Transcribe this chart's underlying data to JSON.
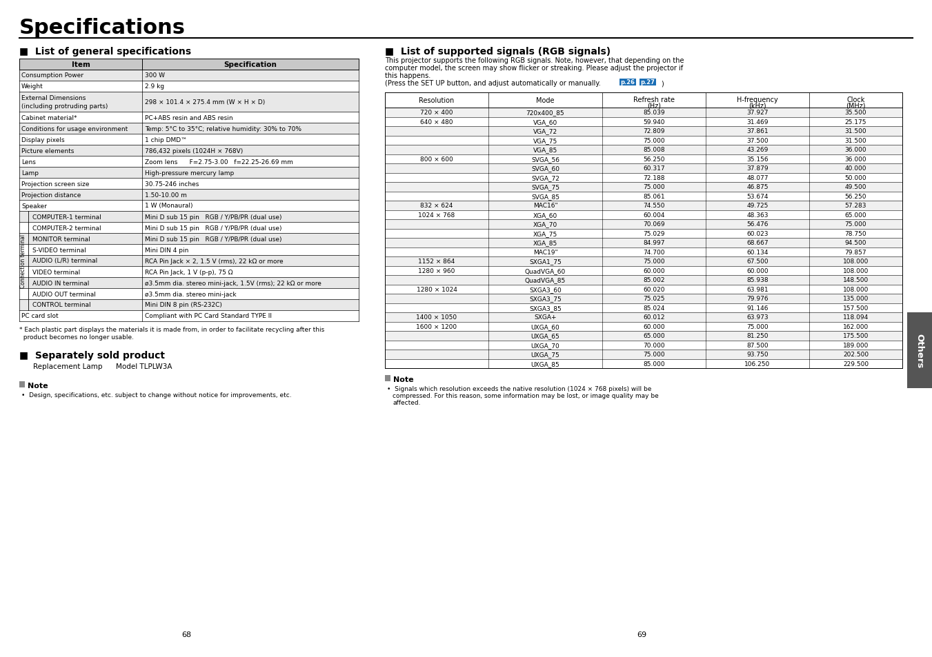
{
  "title": "Specifications",
  "gen_spec_rows": [
    [
      "Consumption Power",
      "300 W"
    ],
    [
      "Weight",
      "2.9 kg"
    ],
    [
      "External Dimensions\n(including protruding parts)",
      "298 × 101.4 × 275.4 mm (W × H × D)"
    ],
    [
      "Cabinet material*",
      "PC+ABS resin and ABS resin"
    ],
    [
      "Conditions for usage environment",
      "Temp: 5°C to 35°C; relative humidity: 30% to 70%"
    ],
    [
      "Display pixels",
      "1 chip DMD™"
    ],
    [
      "Picture elements",
      "786,432 pixels (1024H × 768V)"
    ],
    [
      "Lens",
      "Zoom lens      F=2.75-3.00   f=22.25-26.69 mm"
    ],
    [
      "Lamp",
      "High-pressure mercury lamp"
    ],
    [
      "Projection screen size",
      "30.75-246 inches"
    ],
    [
      "Projection distance",
      "1.50-10.00 m"
    ],
    [
      "Speaker",
      "1 W (Monaural)"
    ],
    [
      "COMPUTER-1 terminal",
      "Mini D sub 15 pin   RGB / Y/PB/PR (dual use)"
    ],
    [
      "COMPUTER-2 terminal",
      "Mini D sub 15 pin   RGB / Y/PB/PR (dual use)"
    ],
    [
      "MONITOR terminal",
      "Mini D sub 15 pin   RGB / Y/PB/PR (dual use)"
    ],
    [
      "S-VIDEO terminal",
      "Mini DIN 4 pin"
    ],
    [
      "AUDIO (L/R) terminal",
      "RCA Pin Jack × 2, 1.5 V (rms), 22 kΩ or more"
    ],
    [
      "VIDEO terminal",
      "RCA Pin Jack, 1 V (p-p), 75 Ω"
    ],
    [
      "AUDIO IN terminal",
      "ø3.5mm dia. stereo mini-jack, 1.5V (rms); 22 kΩ or more"
    ],
    [
      "AUDIO OUT terminal",
      "ø3.5mm dia. stereo mini-jack"
    ],
    [
      "CONTROL terminal",
      "Mini DIN 8 pin (RS-232C)"
    ],
    [
      "PC card slot",
      "Compliant with PC Card Standard TYPE II"
    ]
  ],
  "connection_terminal_rows": [
    12,
    13,
    14,
    15,
    16,
    17,
    18,
    19,
    20
  ],
  "footnote_line1": "* Each plastic part displays the materials it is made from, in order to facilitate recycling after this",
  "footnote_line2": "  product becomes no longer usable.",
  "sold_product_text": "Replacement Lamp      Model TLPLW3A",
  "left_note_text": "Design, specifications, etc. subject to change without notice for improvements, etc.",
  "rgb_intro_lines": [
    "This projector supports the following RGB signals. Note, however, that depending on the",
    "computer model, the screen may show flicker or streaking. Please adjust the projector if",
    "this happens.",
    "(Press the SET UP button, and adjust automatically or manually. "
  ],
  "rgb_headers": [
    "Resolution",
    "Mode",
    "Refresh rate\n(Hz)",
    "H-frequency\n(kHz)",
    "Clock\n(MHz)"
  ],
  "rgb_rows": [
    [
      "720 × 400",
      "720x400_85",
      "85.039",
      "37.927",
      "35.500"
    ],
    [
      "640 × 480",
      "VGA_60",
      "59.940",
      "31.469",
      "25.175"
    ],
    [
      "",
      "VGA_72",
      "72.809",
      "37.861",
      "31.500"
    ],
    [
      "",
      "VGA_75",
      "75.000",
      "37.500",
      "31.500"
    ],
    [
      "",
      "VGA_85",
      "85.008",
      "43.269",
      "36.000"
    ],
    [
      "800 × 600",
      "SVGA_56",
      "56.250",
      "35.156",
      "36.000"
    ],
    [
      "",
      "SVGA_60",
      "60.317",
      "37.879",
      "40.000"
    ],
    [
      "",
      "SVGA_72",
      "72.188",
      "48.077",
      "50.000"
    ],
    [
      "",
      "SVGA_75",
      "75.000",
      "46.875",
      "49.500"
    ],
    [
      "",
      "SVGA_85",
      "85.061",
      "53.674",
      "56.250"
    ],
    [
      "832 × 624",
      "MAC16\"",
      "74.550",
      "49.725",
      "57.283"
    ],
    [
      "1024 × 768",
      "XGA_60",
      "60.004",
      "48.363",
      "65.000"
    ],
    [
      "",
      "XGA_70",
      "70.069",
      "56.476",
      "75.000"
    ],
    [
      "",
      "XGA_75",
      "75.029",
      "60.023",
      "78.750"
    ],
    [
      "",
      "XGA_85",
      "84.997",
      "68.667",
      "94.500"
    ],
    [
      "",
      "MAC19\"",
      "74.700",
      "60.134",
      "79.857"
    ],
    [
      "1152 × 864",
      "SXGA1_75",
      "75.000",
      "67.500",
      "108.000"
    ],
    [
      "1280 × 960",
      "QuadVGA_60",
      "60.000",
      "60.000",
      "108.000"
    ],
    [
      "",
      "QuadVGA_85",
      "85.002",
      "85.938",
      "148.500"
    ],
    [
      "1280 × 1024",
      "SXGA3_60",
      "60.020",
      "63.981",
      "108.000"
    ],
    [
      "",
      "SXGA3_75",
      "75.025",
      "79.976",
      "135.000"
    ],
    [
      "",
      "SXGA3_85",
      "85.024",
      "91.146",
      "157.500"
    ],
    [
      "1400 × 1050",
      "SXGA+",
      "60.012",
      "63.973",
      "118.094"
    ],
    [
      "1600 × 1200",
      "UXGA_60",
      "60.000",
      "75.000",
      "162.000"
    ],
    [
      "",
      "UXGA_65",
      "65.000",
      "81.250",
      "175.500"
    ],
    [
      "",
      "UXGA_70",
      "70.000",
      "87.500",
      "189.000"
    ],
    [
      "",
      "UXGA_75",
      "75.000",
      "93.750",
      "202.500"
    ],
    [
      "",
      "UXGA_85",
      "85.000",
      "106.250",
      "229.500"
    ]
  ],
  "right_note_lines": [
    "Signals which resolution exceeds the native resolution (1024 × 768 pixels) will be",
    "compressed. For this reason, some information may be lost, or image quality may be",
    "affected."
  ],
  "page_left": "68",
  "page_right": "69",
  "others_tab": "Others"
}
